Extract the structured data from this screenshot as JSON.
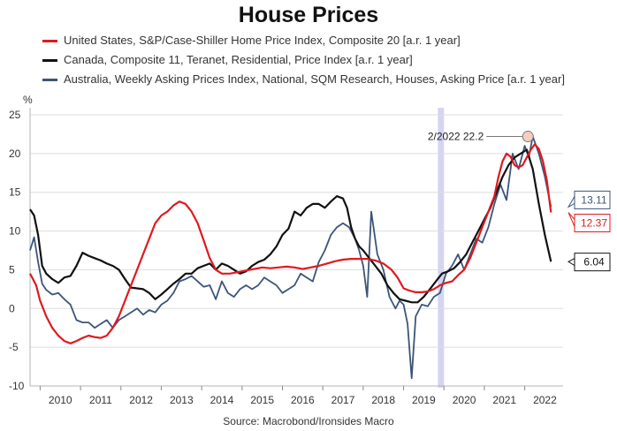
{
  "chart_data": {
    "type": "line",
    "title": "House Prices",
    "ylabel": "%",
    "source": "Source: Macrobond/Ironsides Macro",
    "xlim": [
      2009.75,
      2022.95
    ],
    "ylim": [
      -10,
      25
    ],
    "yticks": [
      25,
      20,
      15,
      10,
      5,
      0,
      -5,
      -10
    ],
    "xticks": [
      2010,
      2011,
      2012,
      2013,
      2014,
      2015,
      2016,
      2017,
      2018,
      2019,
      2020,
      2021,
      2022
    ],
    "grid": true,
    "legend_position": "top-left",
    "highlight_band": {
      "from": 2019.85,
      "to": 2020.0,
      "color": "#c9c9f0"
    },
    "annotation": {
      "text": "2/2022 22.2",
      "x": 2022.08,
      "y": 22.2
    },
    "end_labels": [
      {
        "text": "13.11",
        "series": 2
      },
      {
        "text": "12.37",
        "series": 0
      },
      {
        "text": "6.04",
        "series": 1
      }
    ],
    "series": [
      {
        "name": "United States, S&P/Case-Shiller Home Price Index, Composite 20 [a.r. 1 year]",
        "color": "#e0191e",
        "x": [
          2009.75,
          2009.9,
          2010.0,
          2010.15,
          2010.3,
          2010.45,
          2010.6,
          2010.75,
          2010.9,
          2011.05,
          2011.2,
          2011.35,
          2011.5,
          2011.65,
          2011.8,
          2011.95,
          2012.1,
          2012.25,
          2012.4,
          2012.55,
          2012.7,
          2012.85,
          2013.0,
          2013.15,
          2013.3,
          2013.45,
          2013.6,
          2013.75,
          2013.9,
          2014.05,
          2014.2,
          2014.35,
          2014.5,
          2014.7,
          2014.9,
          2015.1,
          2015.3,
          2015.5,
          2015.7,
          2015.9,
          2016.1,
          2016.3,
          2016.5,
          2016.7,
          2016.9,
          2017.1,
          2017.3,
          2017.5,
          2017.7,
          2017.9,
          2018.1,
          2018.3,
          2018.5,
          2018.7,
          2018.85,
          2019.0,
          2019.15,
          2019.3,
          2019.45,
          2019.6,
          2019.75,
          2019.9,
          2020.05,
          2020.2,
          2020.35,
          2020.5,
          2020.65,
          2020.8,
          2020.95,
          2021.1,
          2021.25,
          2021.35,
          2021.45,
          2021.55,
          2021.65,
          2021.75,
          2021.85,
          2021.95,
          2022.05,
          2022.15,
          2022.25,
          2022.35,
          2022.45,
          2022.55,
          2022.65
        ],
        "values": [
          4.5,
          3.0,
          1.0,
          -1.0,
          -2.5,
          -3.5,
          -4.2,
          -4.5,
          -4.2,
          -3.8,
          -3.5,
          -3.7,
          -3.8,
          -3.5,
          -2.5,
          -1.0,
          1.0,
          3.0,
          5.0,
          7.0,
          9.0,
          11.0,
          12.0,
          12.5,
          13.3,
          13.8,
          13.5,
          12.5,
          11.0,
          8.8,
          6.5,
          5.0,
          4.5,
          4.5,
          4.7,
          4.9,
          5.1,
          5.3,
          5.2,
          5.3,
          5.4,
          5.3,
          5.1,
          5.3,
          5.5,
          5.8,
          6.1,
          6.3,
          6.4,
          6.4,
          6.4,
          6.2,
          5.8,
          5.0,
          4.0,
          2.6,
          2.3,
          2.1,
          2.1,
          2.2,
          2.5,
          3.0,
          3.3,
          3.5,
          4.3,
          5.0,
          6.5,
          8.5,
          10.5,
          12.5,
          14.5,
          17.0,
          19.0,
          20.0,
          19.6,
          18.5,
          18.2,
          18.5,
          19.5,
          20.5,
          21.2,
          20.6,
          19.0,
          16.5,
          12.4
        ]
      },
      {
        "name": "Canada, Composite 11, Teranet, Residential, Price Index [a.r. 1 year]",
        "color": "#111111",
        "x": [
          2009.75,
          2009.85,
          2009.95,
          2010.05,
          2010.15,
          2010.3,
          2010.45,
          2010.6,
          2010.75,
          2010.9,
          2011.05,
          2011.2,
          2011.35,
          2011.5,
          2011.65,
          2011.8,
          2011.95,
          2012.1,
          2012.25,
          2012.4,
          2012.55,
          2012.7,
          2012.85,
          2013.0,
          2013.15,
          2013.3,
          2013.45,
          2013.6,
          2013.75,
          2013.9,
          2014.05,
          2014.2,
          2014.35,
          2014.5,
          2014.65,
          2014.8,
          2014.95,
          2015.1,
          2015.25,
          2015.4,
          2015.55,
          2015.7,
          2015.85,
          2016.0,
          2016.15,
          2016.3,
          2016.45,
          2016.6,
          2016.75,
          2016.9,
          2017.05,
          2017.2,
          2017.35,
          2017.5,
          2017.6,
          2017.7,
          2017.8,
          2017.9,
          2018.0,
          2018.15,
          2018.3,
          2018.45,
          2018.6,
          2018.75,
          2018.9,
          2019.05,
          2019.2,
          2019.35,
          2019.5,
          2019.65,
          2019.8,
          2019.95,
          2020.1,
          2020.25,
          2020.4,
          2020.55,
          2020.7,
          2020.85,
          2021.0,
          2021.15,
          2021.3,
          2021.45,
          2021.6,
          2021.75,
          2021.9,
          2022.05,
          2022.2,
          2022.35,
          2022.5,
          2022.65
        ],
        "values": [
          12.8,
          12.0,
          9.5,
          5.5,
          4.5,
          3.8,
          3.3,
          4.0,
          4.2,
          5.5,
          7.2,
          6.8,
          6.5,
          6.2,
          5.8,
          5.5,
          5.0,
          3.8,
          2.7,
          2.6,
          2.5,
          2.0,
          1.2,
          1.8,
          2.5,
          3.2,
          3.8,
          4.5,
          4.5,
          5.2,
          5.5,
          5.8,
          5.0,
          5.8,
          5.5,
          5.0,
          4.5,
          4.8,
          5.5,
          6.0,
          6.3,
          7.0,
          8.0,
          9.5,
          10.3,
          12.5,
          12.0,
          13.0,
          13.5,
          13.5,
          13.0,
          13.8,
          14.5,
          14.2,
          13.0,
          10.5,
          9.0,
          8.0,
          7.5,
          6.5,
          5.5,
          4.5,
          3.0,
          2.0,
          1.2,
          1.0,
          0.8,
          0.8,
          1.5,
          2.5,
          3.5,
          4.5,
          4.8,
          5.2,
          6.0,
          7.0,
          8.5,
          10.0,
          11.5,
          13.0,
          15.0,
          17.0,
          18.5,
          19.5,
          20.0,
          20.5,
          18.0,
          13.5,
          9.5,
          6.04
        ]
      },
      {
        "name": "Australia, Weekly Asking Prices Index, National, SQM Research, Houses, Asking Price [a.r. 1 year]",
        "color": "#3d5479",
        "x": [
          2009.75,
          2009.85,
          2009.95,
          2010.05,
          2010.15,
          2010.3,
          2010.45,
          2010.6,
          2010.75,
          2010.9,
          2011.05,
          2011.2,
          2011.35,
          2011.5,
          2011.65,
          2011.8,
          2011.95,
          2012.1,
          2012.25,
          2012.4,
          2012.55,
          2012.7,
          2012.85,
          2013.0,
          2013.15,
          2013.3,
          2013.45,
          2013.6,
          2013.75,
          2013.9,
          2014.05,
          2014.2,
          2014.35,
          2014.5,
          2014.65,
          2014.8,
          2014.95,
          2015.1,
          2015.25,
          2015.4,
          2015.55,
          2015.7,
          2015.85,
          2016.0,
          2016.15,
          2016.3,
          2016.45,
          2016.6,
          2016.75,
          2016.9,
          2017.05,
          2017.2,
          2017.35,
          2017.5,
          2017.65,
          2017.8,
          2017.9,
          2018.0,
          2018.1,
          2018.2,
          2018.35,
          2018.5,
          2018.65,
          2018.8,
          2018.9,
          2019.0,
          2019.1,
          2019.2,
          2019.3,
          2019.45,
          2019.6,
          2019.75,
          2019.9,
          2020.05,
          2020.2,
          2020.35,
          2020.5,
          2020.65,
          2020.8,
          2020.95,
          2021.1,
          2021.25,
          2021.4,
          2021.55,
          2021.7,
          2021.85,
          2022.0,
          2022.1,
          2022.2,
          2022.35,
          2022.5,
          2022.65
        ],
        "values": [
          7.5,
          9.2,
          6.0,
          3.2,
          2.4,
          1.8,
          2.0,
          1.2,
          0.5,
          -1.5,
          -1.8,
          -1.8,
          -2.5,
          -2.0,
          -1.5,
          -2.5,
          -1.5,
          -1.0,
          -0.5,
          0.0,
          -0.8,
          -0.2,
          -0.5,
          0.5,
          1.0,
          2.0,
          3.5,
          3.8,
          4.2,
          3.5,
          2.8,
          3.0,
          1.2,
          3.5,
          2.0,
          1.5,
          2.5,
          3.0,
          2.5,
          3.0,
          4.0,
          3.5,
          3.0,
          2.0,
          2.5,
          3.0,
          4.5,
          4.0,
          3.5,
          6.0,
          7.5,
          9.5,
          10.5,
          11.0,
          10.5,
          9.0,
          7.5,
          5.5,
          1.5,
          12.5,
          7.0,
          5.0,
          1.5,
          0.0,
          1.0,
          0.5,
          -2.0,
          -9.0,
          -1.0,
          0.5,
          0.3,
          1.5,
          2.0,
          4.5,
          5.5,
          7.0,
          5.0,
          7.0,
          9.0,
          8.5,
          10.5,
          13.5,
          16.0,
          14.0,
          20.0,
          18.0,
          21.0,
          19.5,
          22.2,
          20.0,
          17.0,
          13.11
        ]
      }
    ]
  }
}
